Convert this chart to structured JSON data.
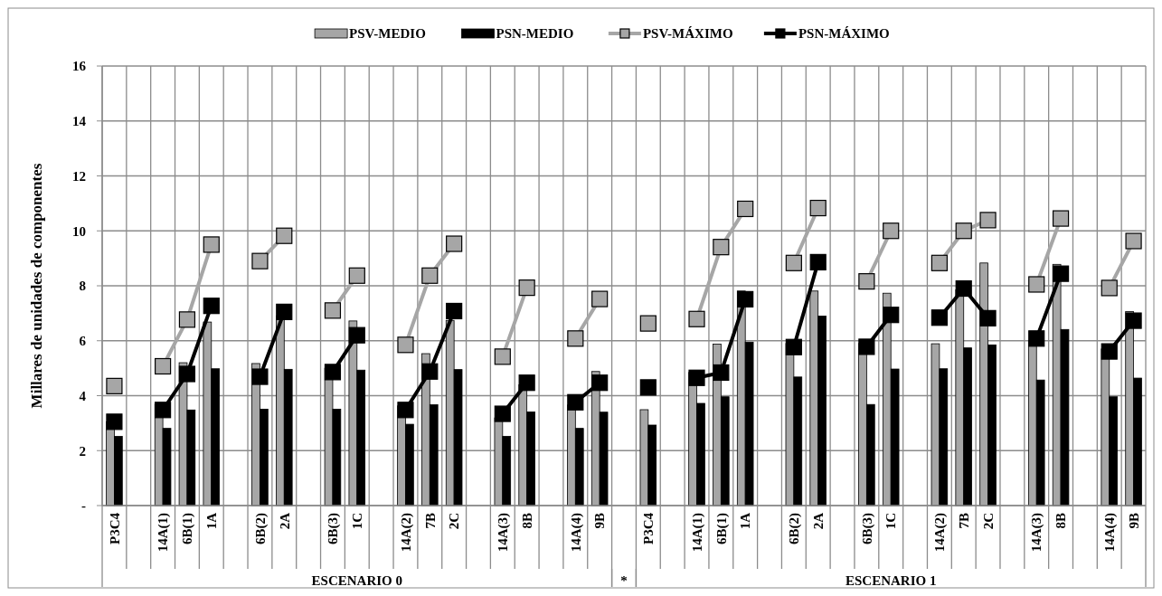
{
  "chart_data": {
    "type": "bar",
    "ylabel": "Millares de unidades de componentes",
    "categories": [
      "P3C4",
      null,
      "14A(1)",
      "6B(1)",
      "1A",
      null,
      "6B(2)",
      "2A",
      null,
      "6B(3)",
      "1C",
      null,
      "14A(2)",
      "7B",
      "2C",
      null,
      "14A(3)",
      "8B",
      null,
      "14A(4)",
      "9B",
      null,
      "P3C4",
      null,
      "14A(1)",
      "6B(1)",
      "1A",
      null,
      "6B(2)",
      "2A",
      null,
      "6B(3)",
      "1C",
      null,
      "14A(2)",
      "7B",
      "2C",
      null,
      "14A(3)",
      "8B",
      null,
      "14A(4)",
      "9B"
    ],
    "series": [
      {
        "name": "PSV-MEDIO",
        "color": "#a6a6a6",
        "values": [
          3.05,
          null,
          3.69,
          5.2,
          6.68,
          null,
          5.17,
          6.9,
          null,
          5.0,
          6.72,
          null,
          3.63,
          5.53,
          6.74,
          null,
          3.19,
          4.4,
          null,
          3.66,
          4.88,
          null,
          3.49,
          null,
          4.85,
          5.88,
          7.81,
          null,
          5.9,
          7.81,
          null,
          5.9,
          7.73,
          null,
          5.89,
          7.85,
          8.83,
          null,
          6.0,
          8.78,
          null,
          5.7,
          7.06
        ]
      },
      {
        "name": "PSN-MEDIO",
        "color": "#000000",
        "values": [
          2.52,
          null,
          2.81,
          3.48,
          4.98,
          null,
          3.51,
          4.96,
          null,
          3.51,
          4.93,
          null,
          2.96,
          3.67,
          4.95,
          null,
          2.52,
          3.41,
          null,
          2.81,
          3.4,
          null,
          2.93,
          null,
          3.72,
          3.96,
          5.95,
          null,
          4.68,
          6.9,
          null,
          3.68,
          4.97,
          null,
          4.98,
          5.74,
          5.85,
          null,
          4.57,
          6.41,
          null,
          3.96,
          4.64
        ]
      },
      {
        "name": "PSV-MÁXIMO",
        "type": "line",
        "color": "#a6a6a6",
        "values": [
          4.35,
          null,
          5.07,
          6.77,
          9.5,
          null,
          8.9,
          9.82,
          null,
          7.1,
          8.37,
          null,
          5.85,
          8.37,
          9.53,
          null,
          5.42,
          7.93,
          null,
          6.08,
          7.52,
          null,
          6.63,
          null,
          6.79,
          9.41,
          10.8,
          null,
          8.83,
          10.83,
          null,
          8.16,
          10.0,
          null,
          8.83,
          10.0,
          10.39,
          null,
          8.05,
          10.45,
          null,
          7.92,
          9.63
        ]
      },
      {
        "name": "PSN-MÁXIMO",
        "type": "line",
        "color": "#000000",
        "values": [
          3.05,
          null,
          3.48,
          4.79,
          7.27,
          null,
          4.69,
          7.05,
          null,
          4.86,
          6.2,
          null,
          3.48,
          4.88,
          7.08,
          null,
          3.34,
          4.47,
          null,
          3.76,
          4.47,
          null,
          4.3,
          null,
          4.65,
          4.84,
          7.51,
          null,
          5.77,
          8.86,
          null,
          5.78,
          6.94,
          null,
          6.84,
          7.9,
          6.82,
          null,
          6.08,
          8.44,
          null,
          5.61,
          6.73
        ]
      }
    ],
    "ylim": [
      0,
      16
    ],
    "yticks": [
      {
        "value": 0,
        "label": "-"
      },
      2,
      4,
      6,
      8,
      10,
      12,
      14,
      16
    ],
    "grid": true,
    "legend": "top",
    "marker": "square",
    "line_style": "solid",
    "annotations": [
      "ESCENARIO 0",
      "*",
      "ESCENARIO 1"
    ]
  }
}
